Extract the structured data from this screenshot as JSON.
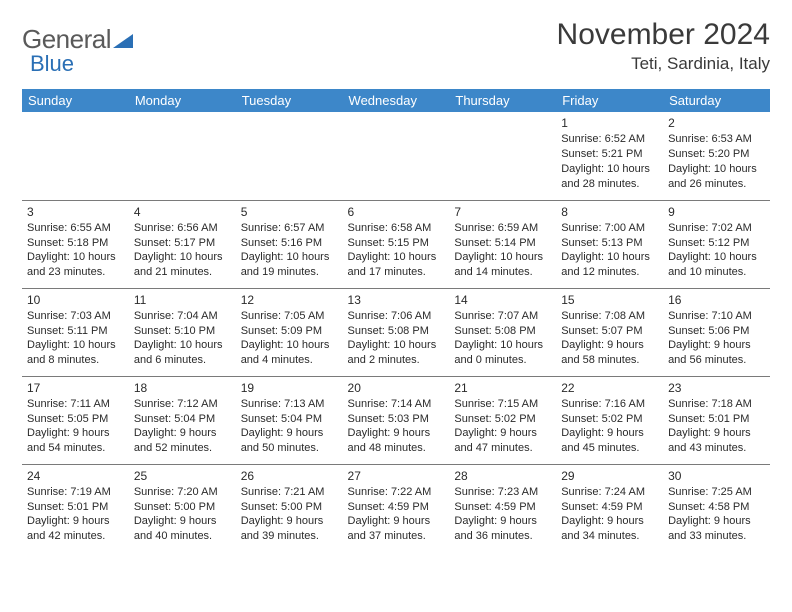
{
  "brand": {
    "part1": "General",
    "part2": "Blue",
    "color_general": "#5a5a5a",
    "color_blue": "#2a6fb5",
    "triangle_color": "#2a6fb5"
  },
  "title": "November 2024",
  "location": "Teti, Sardinia, Italy",
  "colors": {
    "header_bg": "#3d87c9",
    "header_text": "#ffffff",
    "cell_border": "#7a7a7a",
    "text": "#2a2a2a",
    "background": "#ffffff"
  },
  "font": {
    "title_size": 30,
    "location_size": 17,
    "weekday_size": 13,
    "daynum_size": 12,
    "detail_size": 11
  },
  "weekdays": [
    "Sunday",
    "Monday",
    "Tuesday",
    "Wednesday",
    "Thursday",
    "Friday",
    "Saturday"
  ],
  "weeks": [
    [
      null,
      null,
      null,
      null,
      null,
      {
        "day": "1",
        "sunrise": "Sunrise: 6:52 AM",
        "sunset": "Sunset: 5:21 PM",
        "daylight1": "Daylight: 10 hours",
        "daylight2": "and 28 minutes."
      },
      {
        "day": "2",
        "sunrise": "Sunrise: 6:53 AM",
        "sunset": "Sunset: 5:20 PM",
        "daylight1": "Daylight: 10 hours",
        "daylight2": "and 26 minutes."
      }
    ],
    [
      {
        "day": "3",
        "sunrise": "Sunrise: 6:55 AM",
        "sunset": "Sunset: 5:18 PM",
        "daylight1": "Daylight: 10 hours",
        "daylight2": "and 23 minutes."
      },
      {
        "day": "4",
        "sunrise": "Sunrise: 6:56 AM",
        "sunset": "Sunset: 5:17 PM",
        "daylight1": "Daylight: 10 hours",
        "daylight2": "and 21 minutes."
      },
      {
        "day": "5",
        "sunrise": "Sunrise: 6:57 AM",
        "sunset": "Sunset: 5:16 PM",
        "daylight1": "Daylight: 10 hours",
        "daylight2": "and 19 minutes."
      },
      {
        "day": "6",
        "sunrise": "Sunrise: 6:58 AM",
        "sunset": "Sunset: 5:15 PM",
        "daylight1": "Daylight: 10 hours",
        "daylight2": "and 17 minutes."
      },
      {
        "day": "7",
        "sunrise": "Sunrise: 6:59 AM",
        "sunset": "Sunset: 5:14 PM",
        "daylight1": "Daylight: 10 hours",
        "daylight2": "and 14 minutes."
      },
      {
        "day": "8",
        "sunrise": "Sunrise: 7:00 AM",
        "sunset": "Sunset: 5:13 PM",
        "daylight1": "Daylight: 10 hours",
        "daylight2": "and 12 minutes."
      },
      {
        "day": "9",
        "sunrise": "Sunrise: 7:02 AM",
        "sunset": "Sunset: 5:12 PM",
        "daylight1": "Daylight: 10 hours",
        "daylight2": "and 10 minutes."
      }
    ],
    [
      {
        "day": "10",
        "sunrise": "Sunrise: 7:03 AM",
        "sunset": "Sunset: 5:11 PM",
        "daylight1": "Daylight: 10 hours",
        "daylight2": "and 8 minutes."
      },
      {
        "day": "11",
        "sunrise": "Sunrise: 7:04 AM",
        "sunset": "Sunset: 5:10 PM",
        "daylight1": "Daylight: 10 hours",
        "daylight2": "and 6 minutes."
      },
      {
        "day": "12",
        "sunrise": "Sunrise: 7:05 AM",
        "sunset": "Sunset: 5:09 PM",
        "daylight1": "Daylight: 10 hours",
        "daylight2": "and 4 minutes."
      },
      {
        "day": "13",
        "sunrise": "Sunrise: 7:06 AM",
        "sunset": "Sunset: 5:08 PM",
        "daylight1": "Daylight: 10 hours",
        "daylight2": "and 2 minutes."
      },
      {
        "day": "14",
        "sunrise": "Sunrise: 7:07 AM",
        "sunset": "Sunset: 5:08 PM",
        "daylight1": "Daylight: 10 hours",
        "daylight2": "and 0 minutes."
      },
      {
        "day": "15",
        "sunrise": "Sunrise: 7:08 AM",
        "sunset": "Sunset: 5:07 PM",
        "daylight1": "Daylight: 9 hours",
        "daylight2": "and 58 minutes."
      },
      {
        "day": "16",
        "sunrise": "Sunrise: 7:10 AM",
        "sunset": "Sunset: 5:06 PM",
        "daylight1": "Daylight: 9 hours",
        "daylight2": "and 56 minutes."
      }
    ],
    [
      {
        "day": "17",
        "sunrise": "Sunrise: 7:11 AM",
        "sunset": "Sunset: 5:05 PM",
        "daylight1": "Daylight: 9 hours",
        "daylight2": "and 54 minutes."
      },
      {
        "day": "18",
        "sunrise": "Sunrise: 7:12 AM",
        "sunset": "Sunset: 5:04 PM",
        "daylight1": "Daylight: 9 hours",
        "daylight2": "and 52 minutes."
      },
      {
        "day": "19",
        "sunrise": "Sunrise: 7:13 AM",
        "sunset": "Sunset: 5:04 PM",
        "daylight1": "Daylight: 9 hours",
        "daylight2": "and 50 minutes."
      },
      {
        "day": "20",
        "sunrise": "Sunrise: 7:14 AM",
        "sunset": "Sunset: 5:03 PM",
        "daylight1": "Daylight: 9 hours",
        "daylight2": "and 48 minutes."
      },
      {
        "day": "21",
        "sunrise": "Sunrise: 7:15 AM",
        "sunset": "Sunset: 5:02 PM",
        "daylight1": "Daylight: 9 hours",
        "daylight2": "and 47 minutes."
      },
      {
        "day": "22",
        "sunrise": "Sunrise: 7:16 AM",
        "sunset": "Sunset: 5:02 PM",
        "daylight1": "Daylight: 9 hours",
        "daylight2": "and 45 minutes."
      },
      {
        "day": "23",
        "sunrise": "Sunrise: 7:18 AM",
        "sunset": "Sunset: 5:01 PM",
        "daylight1": "Daylight: 9 hours",
        "daylight2": "and 43 minutes."
      }
    ],
    [
      {
        "day": "24",
        "sunrise": "Sunrise: 7:19 AM",
        "sunset": "Sunset: 5:01 PM",
        "daylight1": "Daylight: 9 hours",
        "daylight2": "and 42 minutes."
      },
      {
        "day": "25",
        "sunrise": "Sunrise: 7:20 AM",
        "sunset": "Sunset: 5:00 PM",
        "daylight1": "Daylight: 9 hours",
        "daylight2": "and 40 minutes."
      },
      {
        "day": "26",
        "sunrise": "Sunrise: 7:21 AM",
        "sunset": "Sunset: 5:00 PM",
        "daylight1": "Daylight: 9 hours",
        "daylight2": "and 39 minutes."
      },
      {
        "day": "27",
        "sunrise": "Sunrise: 7:22 AM",
        "sunset": "Sunset: 4:59 PM",
        "daylight1": "Daylight: 9 hours",
        "daylight2": "and 37 minutes."
      },
      {
        "day": "28",
        "sunrise": "Sunrise: 7:23 AM",
        "sunset": "Sunset: 4:59 PM",
        "daylight1": "Daylight: 9 hours",
        "daylight2": "and 36 minutes."
      },
      {
        "day": "29",
        "sunrise": "Sunrise: 7:24 AM",
        "sunset": "Sunset: 4:59 PM",
        "daylight1": "Daylight: 9 hours",
        "daylight2": "and 34 minutes."
      },
      {
        "day": "30",
        "sunrise": "Sunrise: 7:25 AM",
        "sunset": "Sunset: 4:58 PM",
        "daylight1": "Daylight: 9 hours",
        "daylight2": "and 33 minutes."
      }
    ]
  ]
}
